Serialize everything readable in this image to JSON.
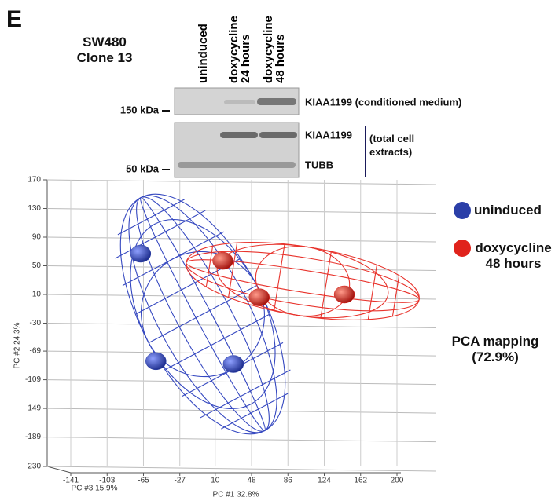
{
  "panel_label": "E",
  "blot": {
    "cell_line": "SW480",
    "clone": "Clone 13",
    "lanes": [
      "uninduced",
      "doxycycline 24 hours",
      "doxycycline 48 hours"
    ],
    "markers": [
      "150 kDa",
      "50 kDa"
    ],
    "bands": [
      "KIAA1199 (conditioned medium)",
      "KIAA1199",
      "TUBB"
    ],
    "group_label": "(total cell extracts)"
  },
  "chart_data": {
    "type": "scatter",
    "title": "PCA mapping (72.9%)",
    "xlabel": "PC #1 32.8%",
    "ylabel": "PC #2 24.3%",
    "zlabel": "PC #3 15.9%",
    "xlim": [
      -141,
      200
    ],
    "ylim": [
      -230,
      170
    ],
    "xticks": [
      -141,
      -103,
      -65,
      -27,
      10,
      48,
      86,
      124,
      162,
      200
    ],
    "yticks": [
      170,
      130,
      90,
      50,
      10,
      -30,
      -69,
      -109,
      -149,
      -189,
      -230
    ],
    "grid": true,
    "series": [
      {
        "name": "uninduced",
        "color": "#2b3fa8",
        "x": [
          -68,
          -52,
          29
        ],
        "values": [
          67,
          -83,
          -87
        ]
      },
      {
        "name": "doxycycline 48 hours",
        "color": "#e0231c",
        "x": [
          18,
          56,
          145
        ],
        "values": [
          57,
          6,
          10
        ]
      }
    ]
  }
}
